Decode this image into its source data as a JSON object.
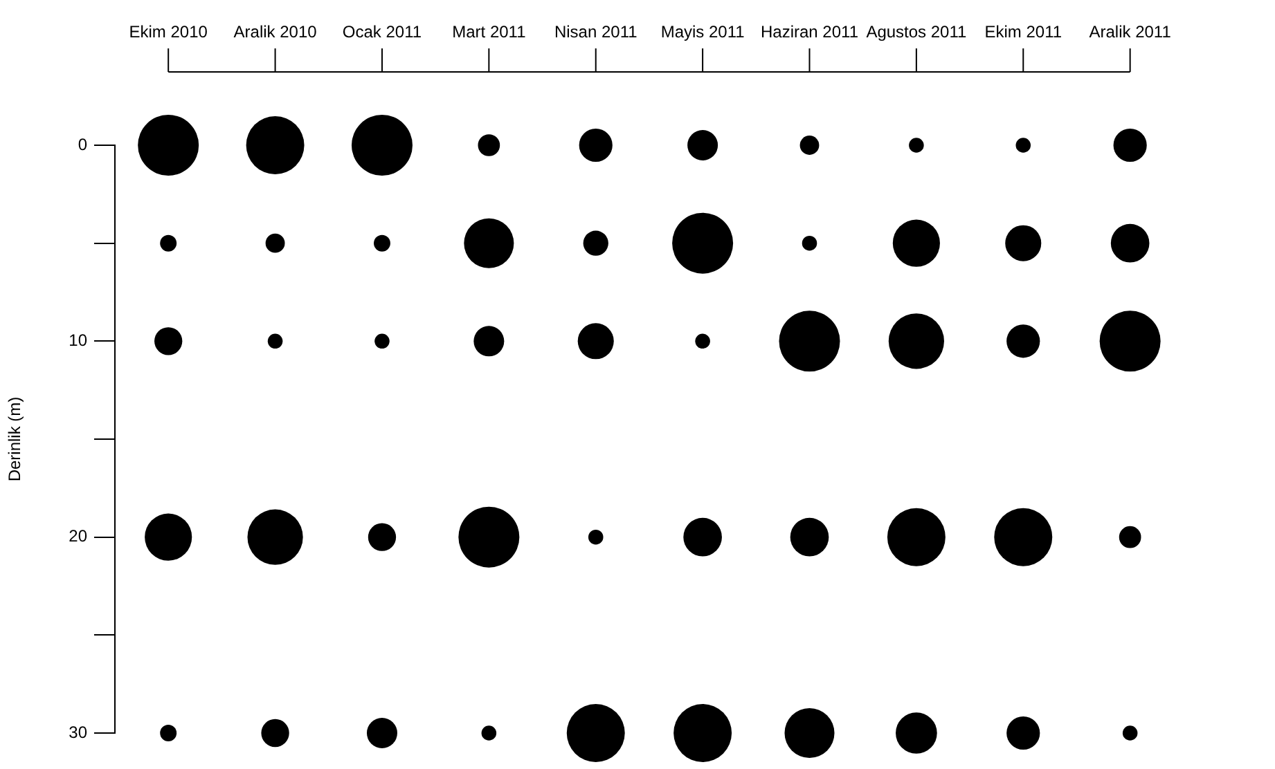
{
  "chart_data": {
    "type": "bubble",
    "ylabel": "Derinlik (m)",
    "categories": [
      "Ekim 2010",
      "Aralik 2010",
      "Ocak 2011",
      "Mart 2011",
      "Nisan 2011",
      "Mayis 2011",
      "Haziran 2011",
      "Agustos 2011",
      "Ekim 2011",
      "Aralik 2011"
    ],
    "ylim": [
      30,
      0
    ],
    "yticks": [
      0,
      {
        "value": 5,
        "label": null
      },
      10,
      {
        "value": 15,
        "label": null
      },
      20,
      {
        "value": 25,
        "label": null
      },
      30
    ],
    "series": [
      {
        "color": "#000000",
        "values": [
          0,
          0,
          0,
          0,
          0,
          0,
          0,
          0,
          0,
          0
        ],
        "sizes": [
          1,
          0.91,
          1,
          0.13,
          0.3,
          0.25,
          0.1,
          0.06,
          0.06,
          0.3
        ]
      },
      {
        "color": "#000000",
        "values": [
          5,
          5,
          5,
          5,
          5,
          5,
          5,
          5,
          5,
          5
        ],
        "sizes": [
          0.074,
          0.1,
          0.074,
          0.67,
          0.17,
          1,
          0.06,
          0.6,
          0.35,
          0.4
        ]
      },
      {
        "color": "#000000",
        "values": [
          10,
          10,
          10,
          10,
          10,
          10,
          10,
          10,
          10,
          10
        ],
        "sizes": [
          0.21,
          0.06,
          0.06,
          0.25,
          0.35,
          0.06,
          1,
          0.83,
          0.3,
          1
        ]
      },
      {
        "color": "#000000",
        "values": [
          20,
          20,
          20,
          20,
          20,
          20,
          20,
          20,
          20,
          20
        ],
        "sizes": [
          0.6,
          0.83,
          0.21,
          1,
          0.06,
          0.4,
          0.4,
          0.91,
          0.91,
          0.13
        ]
      },
      {
        "color": "#000000",
        "values": [
          30,
          30,
          30,
          30,
          30,
          30,
          30,
          30,
          30,
          30
        ],
        "sizes": [
          0.074,
          0.21,
          0.25,
          0.06,
          0.91,
          0.91,
          0.67,
          0.46,
          0.3,
          0.06
        ]
      }
    ]
  }
}
